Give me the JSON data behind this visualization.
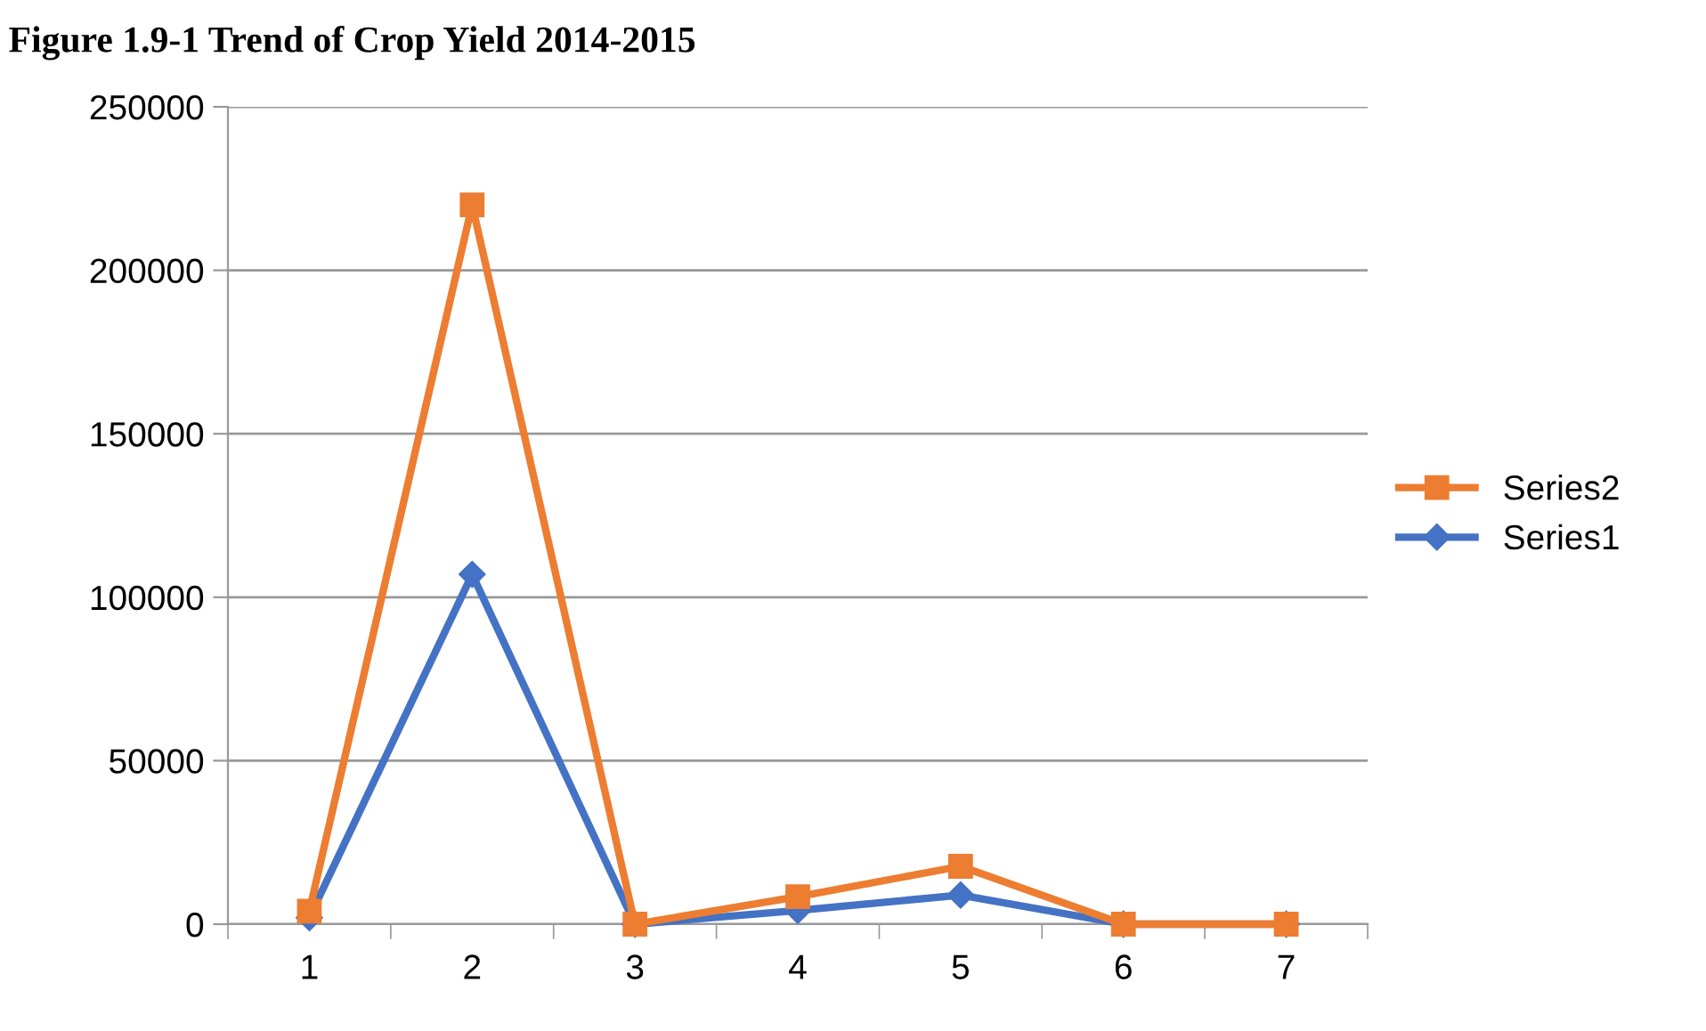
{
  "chart_data": {
    "type": "line",
    "title": "Figure 1.9-1 Trend of Crop Yield 2014-2015",
    "categories": [
      "1",
      "2",
      "3",
      "4",
      "5",
      "6",
      "7"
    ],
    "series": [
      {
        "name": "Series1",
        "color": "#4472c4",
        "marker": "diamond",
        "values": [
          2000,
          107000,
          0,
          4200,
          8900,
          0,
          0
        ]
      },
      {
        "name": "Series2",
        "color": "#ed7d31",
        "marker": "square",
        "values": [
          4000,
          220000,
          0,
          8400,
          17700,
          0,
          0
        ]
      }
    ],
    "ylim": [
      0,
      250000
    ],
    "yticks": [
      0,
      50000,
      100000,
      150000,
      200000,
      250000
    ],
    "grid": "y",
    "legend": "right",
    "line_style": "solid"
  }
}
